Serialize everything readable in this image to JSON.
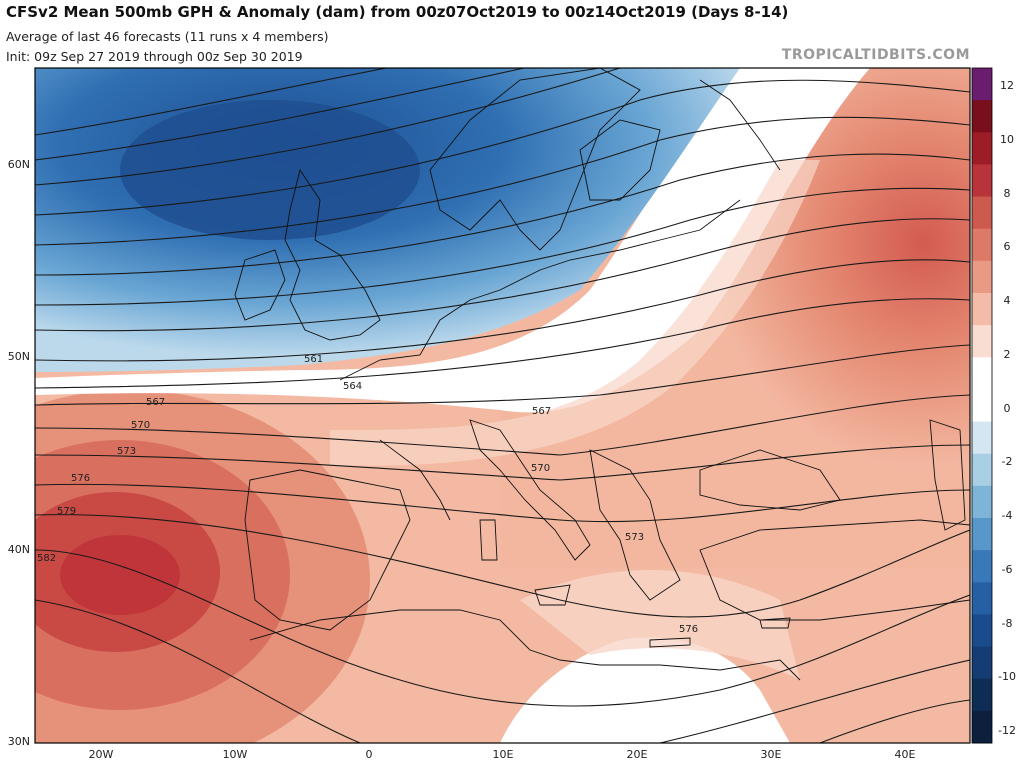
{
  "header": {
    "title": "CFSv2 Mean 500mb GPH & Anomaly (dam) from 00z07Oct2019 to 00z14Oct2019 (Days 8-14)",
    "subtitle1": "Average of last 46 forecasts (11 runs x 4 members)",
    "subtitle2": "Init: 09z Sep 27 2019 through 00z Sep 30 2019",
    "brand": "TROPICALTIDBITS.COM"
  },
  "axes": {
    "lat_labels": [
      "60N",
      "50N",
      "40N",
      "30N"
    ],
    "lon_labels": [
      "20W",
      "10W",
      "0",
      "10E",
      "20E",
      "30E",
      "40E"
    ]
  },
  "colorbar": {
    "ticks": [
      "12",
      "10",
      "8",
      "6",
      "4",
      "2",
      "0",
      "-2",
      "-4",
      "-6",
      "-8",
      "-10",
      "-12"
    ],
    "colors": [
      "#6a1d6e",
      "#7a0f1c",
      "#9c1d26",
      "#b8333a",
      "#cc5a4f",
      "#dc7a67",
      "#e89a84",
      "#f2bca8",
      "#f8ddd0",
      "#ffffff",
      "#ffffff",
      "#d3e6f1",
      "#a9cfe5",
      "#7fb4d9",
      "#5897c9",
      "#3a79b9",
      "#2560a4",
      "#1a4b8c",
      "#153c73",
      "#0f2c55",
      "#0c1f3d"
    ]
  },
  "contours": {
    "labels": [
      "561",
      "564",
      "567",
      "570",
      "573",
      "576",
      "579",
      "582",
      "567",
      "570",
      "573",
      "576"
    ]
  }
}
